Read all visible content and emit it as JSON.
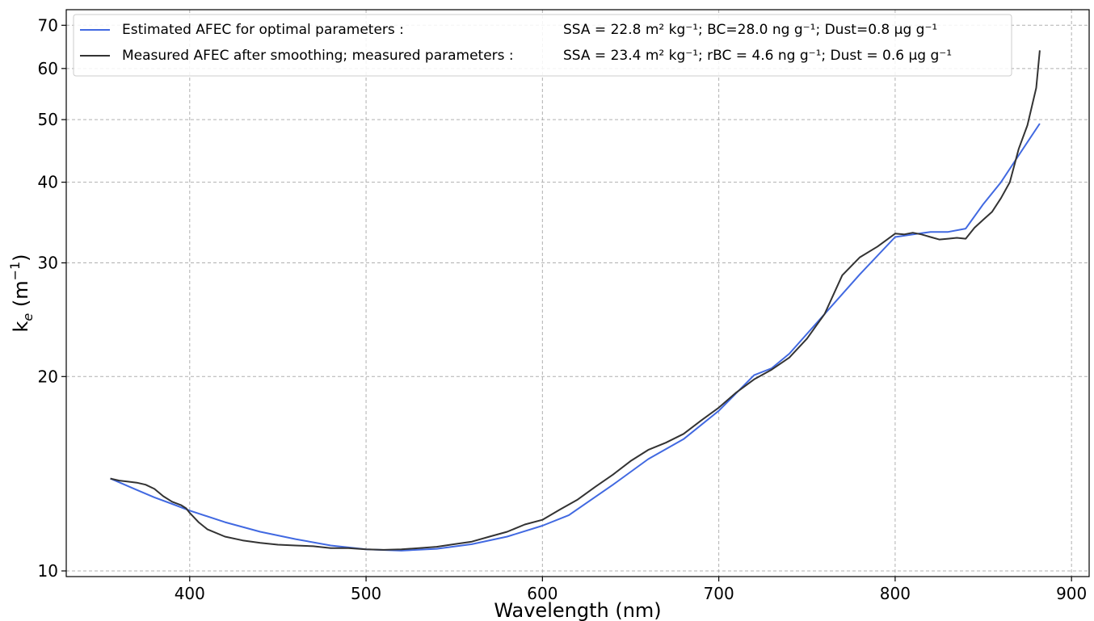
{
  "chart_data": {
    "type": "line",
    "xlabel": "Wavelength (nm)",
    "ylabel": "k_e (m^-1)",
    "ylabel_parts": {
      "main": "k",
      "sub": "e",
      "unit_open": " (m",
      "unit_sup": "−1",
      "unit_close": ")"
    },
    "xlim": [
      330,
      910
    ],
    "ylim": [
      9.8,
      74
    ],
    "yscale": "log",
    "grid": true,
    "legend_position": "top-left",
    "x_ticks": [
      400,
      500,
      600,
      700,
      800,
      900
    ],
    "x_tick_labels": [
      "400",
      "500",
      "600",
      "700",
      "800",
      "900"
    ],
    "y_ticks": [
      10,
      20,
      30,
      40,
      50,
      60,
      70
    ],
    "y_tick_labels": [
      "10",
      "20",
      "30",
      "40",
      "50",
      "60",
      "70"
    ],
    "legend": [
      {
        "series": "estimated",
        "label": "Estimated AFEC for optimal parameters :",
        "params": "SSA = 22.8 m² kg⁻¹; BC=28.0 ng g⁻¹; Dust=0.8 μg g⁻¹"
      },
      {
        "series": "measured",
        "label": "Measured AFEC after smoothing; measured parameters :",
        "params": "SSA = 23.4 m² kg⁻¹; rBC = 4.6 ng g⁻¹; Dust = 0.6 μg g⁻¹"
      }
    ],
    "series": [
      {
        "id": "estimated",
        "color": "#4169e1",
        "x": [
          355,
          370,
          380,
          390,
          400,
          420,
          440,
          460,
          480,
          500,
          520,
          540,
          560,
          580,
          600,
          615,
          640,
          660,
          680,
          700,
          720,
          730,
          740,
          760,
          780,
          800,
          820,
          830,
          840,
          850,
          860,
          870,
          882
        ],
        "y": [
          13.9,
          13.35,
          13.0,
          12.7,
          12.4,
          11.9,
          11.5,
          11.2,
          10.95,
          10.8,
          10.75,
          10.82,
          11.0,
          11.3,
          11.75,
          12.2,
          13.6,
          14.9,
          16.0,
          17.7,
          20.1,
          20.6,
          21.7,
          25.0,
          28.8,
          32.9,
          33.5,
          33.5,
          33.9,
          37.0,
          40.0,
          44.0,
          49.3
        ]
      },
      {
        "id": "measured",
        "color": "#333333",
        "x": [
          355,
          360,
          365,
          370,
          375,
          380,
          385,
          390,
          395,
          398,
          400,
          405,
          410,
          420,
          430,
          440,
          450,
          460,
          470,
          480,
          490,
          500,
          510,
          520,
          530,
          540,
          550,
          560,
          570,
          580,
          590,
          600,
          610,
          620,
          630,
          640,
          650,
          660,
          670,
          680,
          690,
          700,
          710,
          720,
          730,
          740,
          750,
          760,
          770,
          780,
          790,
          800,
          805,
          810,
          815,
          820,
          825,
          830,
          835,
          840,
          845,
          850,
          855,
          860,
          865,
          870,
          875,
          880,
          882
        ],
        "y": [
          13.9,
          13.8,
          13.75,
          13.7,
          13.6,
          13.4,
          13.05,
          12.8,
          12.65,
          12.5,
          12.3,
          11.9,
          11.6,
          11.3,
          11.15,
          11.05,
          10.98,
          10.95,
          10.92,
          10.85,
          10.85,
          10.8,
          10.78,
          10.8,
          10.85,
          10.9,
          11.0,
          11.1,
          11.3,
          11.5,
          11.8,
          12.0,
          12.45,
          12.9,
          13.5,
          14.1,
          14.8,
          15.4,
          15.8,
          16.3,
          17.1,
          17.9,
          18.9,
          19.8,
          20.5,
          21.4,
          22.9,
          25.0,
          28.7,
          30.6,
          31.8,
          33.3,
          33.2,
          33.4,
          33.2,
          32.9,
          32.6,
          32.7,
          32.8,
          32.7,
          34.0,
          35.0,
          36.0,
          37.8,
          40.0,
          45.0,
          49.0,
          56.0,
          64.0
        ]
      }
    ]
  }
}
